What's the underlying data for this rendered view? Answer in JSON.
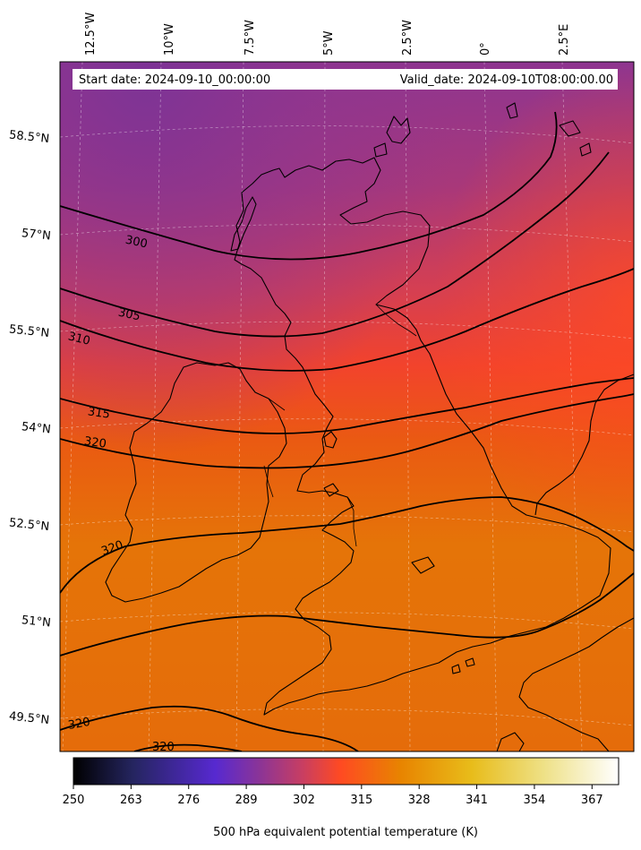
{
  "map": {
    "start_date": "Start date: 2024-09-10_00:00:00",
    "valid_date": "Valid_date: 2024-09-10T08:00:00.00",
    "lon_labels": [
      "12.5°W",
      "10°W",
      "7.5°W",
      "5°W",
      "2.5°W",
      "0°",
      "2.5°E"
    ],
    "lat_labels": [
      "58.5°N",
      "57°N",
      "55.5°N",
      "54°N",
      "52.5°N",
      "51°N",
      "49.5°N"
    ],
    "contour_labels": [
      "300",
      "305",
      "310",
      "315",
      "320",
      "320",
      "320",
      "320"
    ]
  },
  "colorbar": {
    "label": "500 hPa equivalent potential temperature (K)",
    "ticks": [
      "250",
      "263",
      "276",
      "289",
      "302",
      "315",
      "328",
      "341",
      "354",
      "367"
    ],
    "range": [
      250,
      373
    ],
    "colormap": "CMRmap",
    "colors": [
      "#000000",
      "#2e2e80",
      "#5b2ccc",
      "#9a3a8a",
      "#e8404a",
      "#ff4a22",
      "#e88400",
      "#e8c020",
      "#eeea88",
      "#ffffff"
    ]
  }
}
